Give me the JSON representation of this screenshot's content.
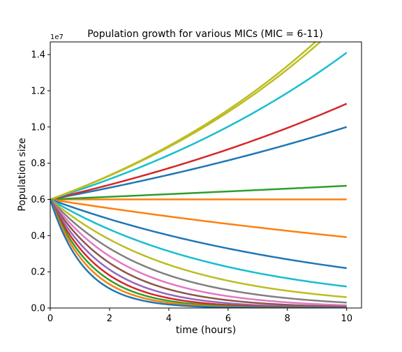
{
  "chart_data": {
    "type": "line",
    "title": "Population growth for various MICs (MIC = 6-11)",
    "xlabel": "time (hours)",
    "ylabel": "Population size",
    "y_offset_label": "1e7",
    "xlim": [
      0,
      10.5
    ],
    "ylim": [
      0,
      14700000
    ],
    "x_ticks": [
      0,
      2,
      4,
      6,
      8,
      10
    ],
    "x_tick_labels": [
      "0",
      "2",
      "4",
      "6",
      "8",
      "10"
    ],
    "y_ticks": [
      0,
      2000000,
      4000000,
      6000000,
      8000000,
      10000000,
      12000000,
      14000000
    ],
    "y_tick_labels": [
      "0.0",
      "0.2",
      "0.4",
      "0.6",
      "0.8",
      "1.0",
      "1.2",
      "1.4"
    ],
    "grid": false,
    "legend": "none",
    "x_range": [
      0,
      10
    ],
    "initial_value": 6000000,
    "series": [
      {
        "color": "#1f77b4",
        "growth_rate": 0.0511
      },
      {
        "color": "#ff7f0e",
        "growth_rate": 0.0
      },
      {
        "color": "#2ca02c",
        "growth_rate": 0.0118
      },
      {
        "color": "#d62728",
        "growth_rate": 0.0632
      },
      {
        "color": "#17becf",
        "growth_rate": 0.0855
      },
      {
        "color": "#bcbd22",
        "growth_rate": 0.0984
      },
      {
        "color": "#bcbd22",
        "growth_rate": 0.1002
      },
      {
        "color": "#ff7f0e",
        "growth_rate": -0.0427
      },
      {
        "color": "#1f77b4",
        "growth_rate": -0.1003
      },
      {
        "color": "#17becf",
        "growth_rate": -0.1621
      },
      {
        "color": "#bcbd22",
        "growth_rate": -0.2303
      },
      {
        "color": "#7f7f7f",
        "growth_rate": -0.3
      },
      {
        "color": "#e377c2",
        "growth_rate": -0.37
      },
      {
        "color": "#8c564b",
        "growth_rate": -0.44
      },
      {
        "color": "#9467bd",
        "growth_rate": -0.52
      },
      {
        "color": "#d62728",
        "growth_rate": -0.6
      },
      {
        "color": "#2ca02c",
        "growth_rate": -0.68
      },
      {
        "color": "#ff7f0e",
        "growth_rate": -0.76
      },
      {
        "color": "#1f77b4",
        "growth_rate": -0.86
      }
    ]
  }
}
